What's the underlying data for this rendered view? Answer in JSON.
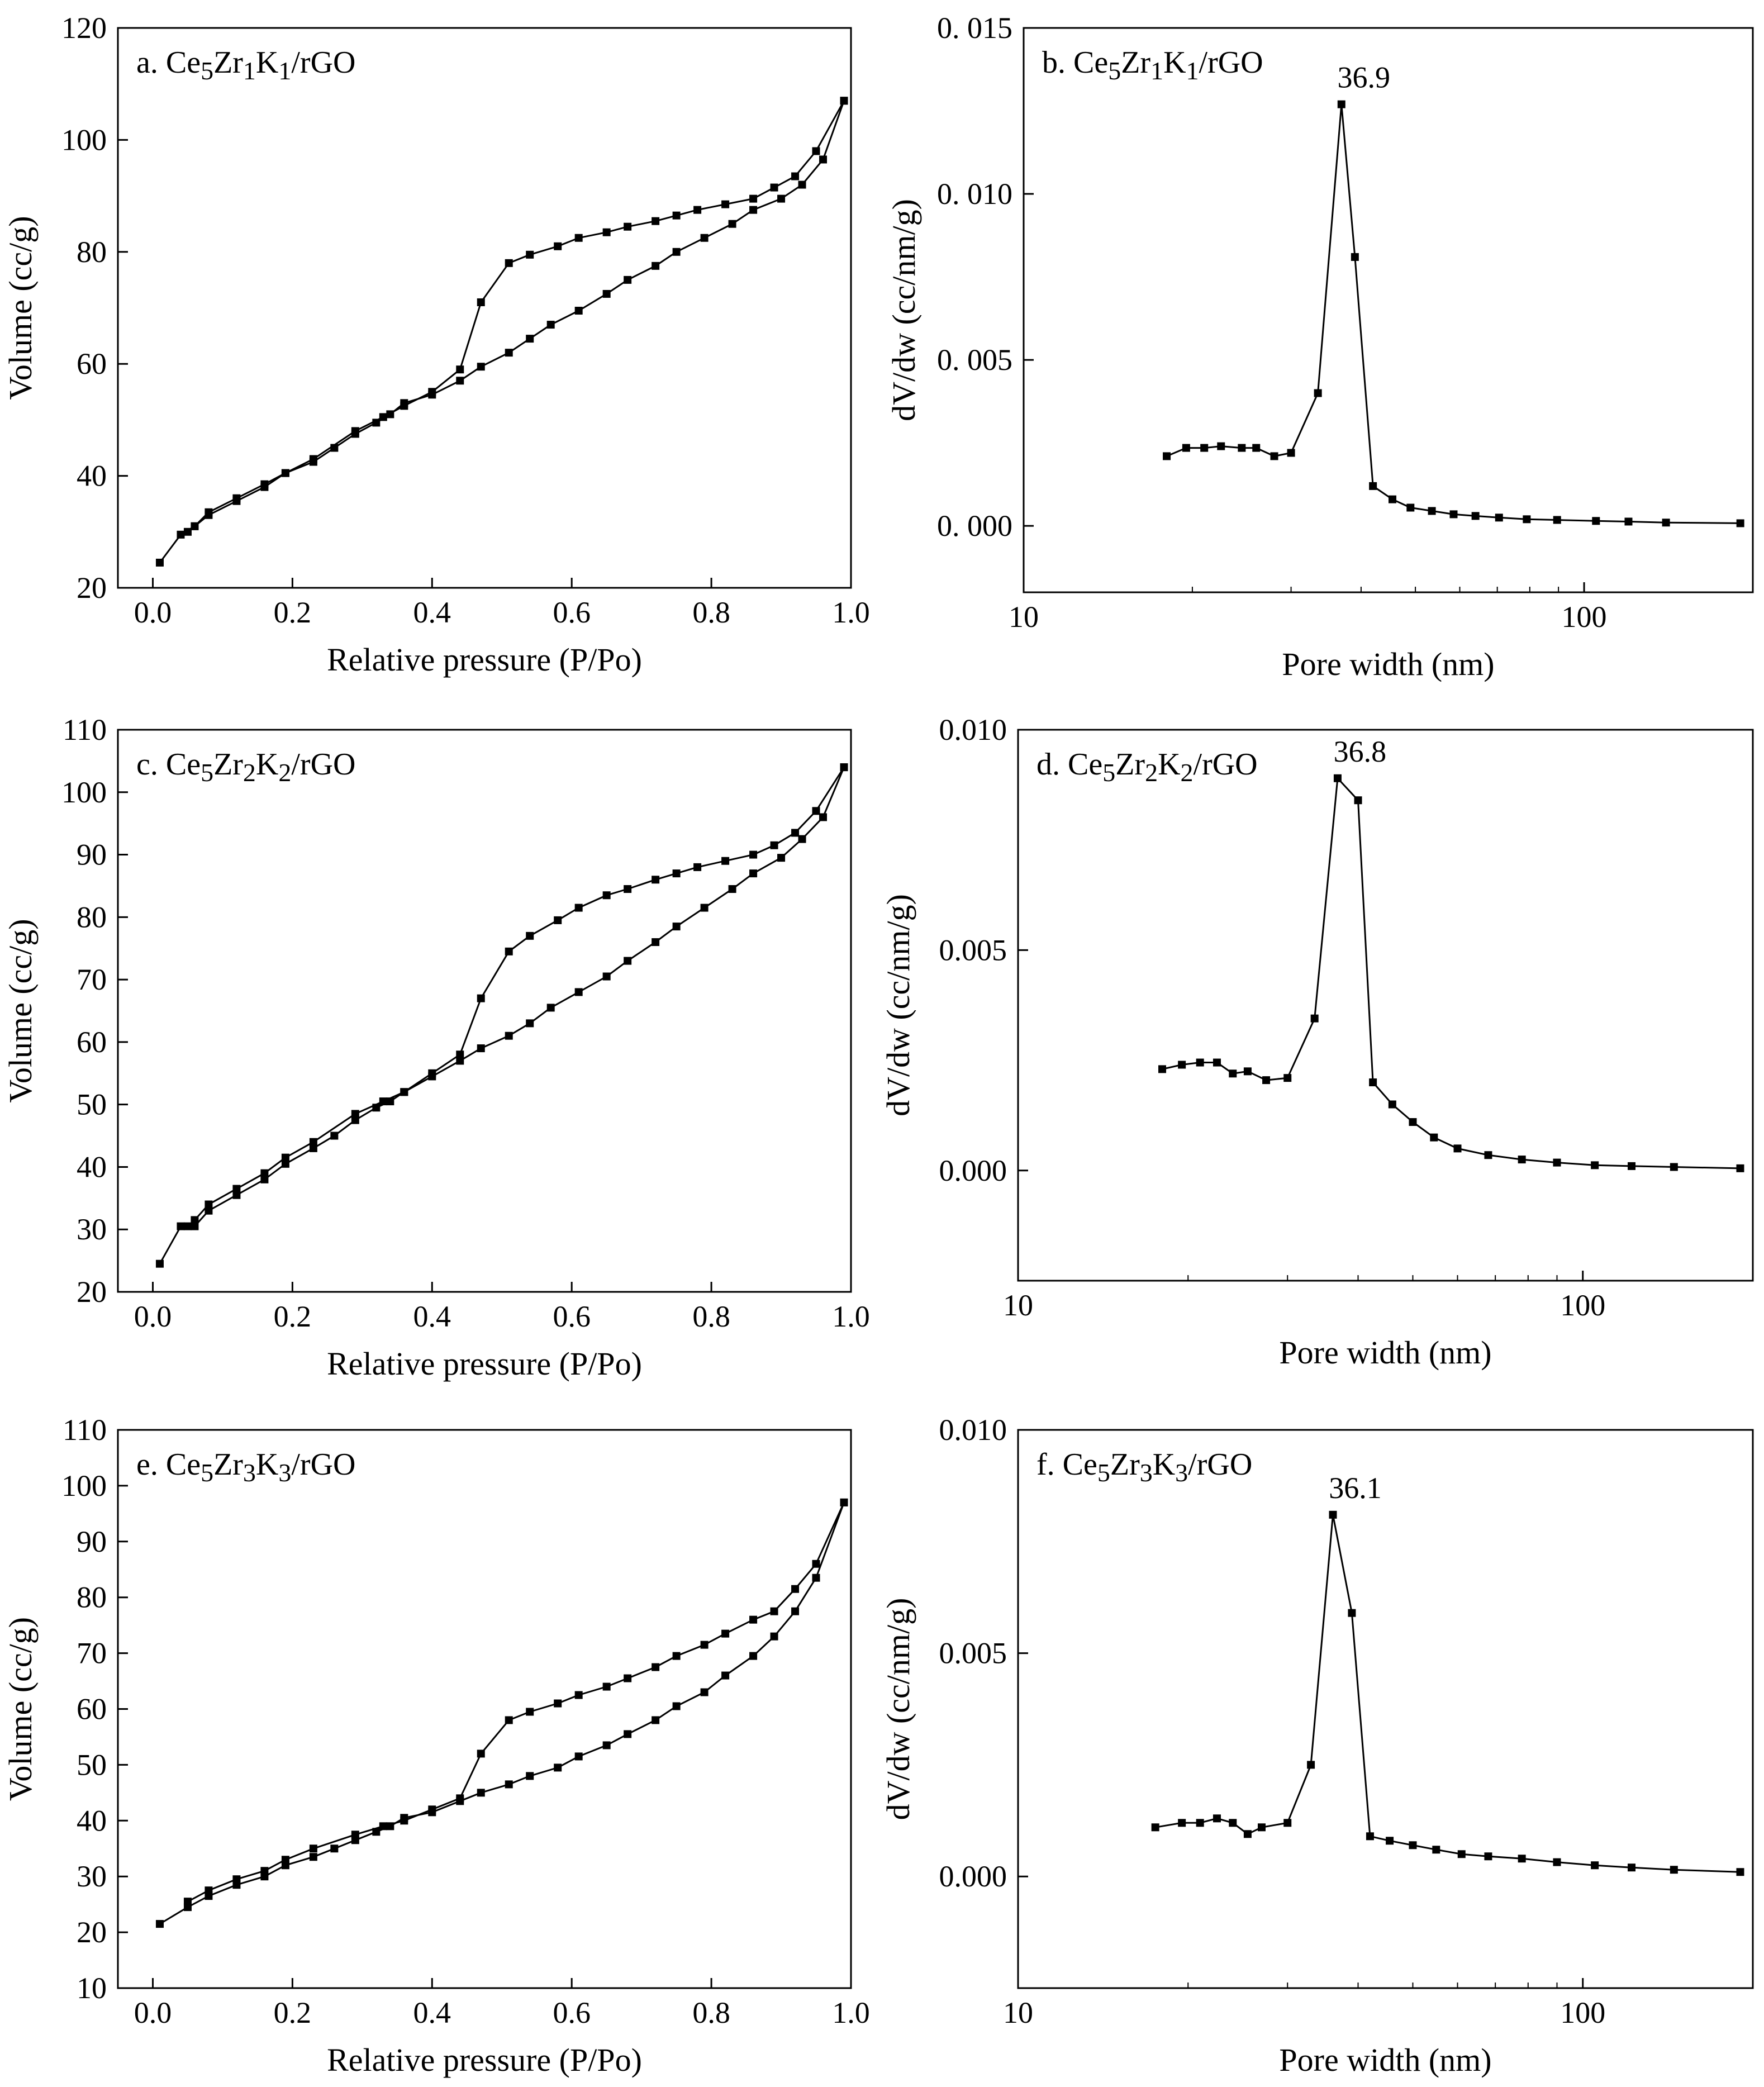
{
  "figure": {
    "panels": [
      "a",
      "b",
      "c",
      "d",
      "e",
      "f"
    ]
  },
  "chart_data": [
    {
      "id": "a",
      "type": "line",
      "panel_label": "a. Ce5Zr1K1/rGO",
      "label_parts": [
        [
          "a. Ce",
          ""
        ],
        [
          "5",
          "sub"
        ],
        [
          "Zr",
          ""
        ],
        [
          "1",
          "sub"
        ],
        [
          "K",
          ""
        ],
        [
          "1",
          "sub"
        ],
        [
          "/rGO",
          ""
        ]
      ],
      "xlabel": "Relative pressure (P/Po)",
      "ylabel": "Volume (cc/g)",
      "xscale": "linear",
      "xlim": [
        -0.05,
        1.0
      ],
      "ylim": [
        20,
        120
      ],
      "xticks": [
        0.0,
        0.2,
        0.4,
        0.6,
        0.8,
        1.0
      ],
      "xtick_labels": [
        "0.0",
        "0.2",
        "0.4",
        "0.6",
        "0.8",
        "1.0"
      ],
      "yticks": [
        20,
        40,
        60,
        80,
        100,
        120
      ],
      "ytick_labels": [
        "20",
        "40",
        "60",
        "80",
        "100",
        "120"
      ],
      "series": [
        {
          "x": [
            0.01,
            0.04,
            0.06,
            0.08,
            0.12,
            0.16,
            0.19,
            0.23,
            0.26,
            0.29,
            0.32,
            0.34,
            0.36,
            0.4,
            0.44,
            0.47,
            0.51,
            0.54,
            0.57,
            0.61,
            0.65,
            0.68,
            0.72,
            0.75,
            0.79,
            0.83,
            0.86,
            0.9,
            0.93,
            0.96,
            0.99
          ],
          "y": [
            24.5,
            29.5,
            31.0,
            33.0,
            35.5,
            38.0,
            40.5,
            42.5,
            45.0,
            47.5,
            49.5,
            51.0,
            53.0,
            54.5,
            57.0,
            59.5,
            62.0,
            64.5,
            67.0,
            69.5,
            72.5,
            75.0,
            77.5,
            80.0,
            82.5,
            85.0,
            87.5,
            89.5,
            92.0,
            96.5,
            107.0
          ]
        },
        {
          "x": [
            0.99,
            0.95,
            0.92,
            0.89,
            0.86,
            0.82,
            0.78,
            0.75,
            0.72,
            0.68,
            0.65,
            0.61,
            0.58,
            0.54,
            0.51,
            0.47,
            0.44,
            0.4,
            0.36,
            0.33,
            0.29,
            0.23,
            0.19,
            0.16,
            0.12,
            0.08,
            0.06,
            0.05
          ],
          "y": [
            107.0,
            98.0,
            93.5,
            91.5,
            89.5,
            88.5,
            87.5,
            86.5,
            85.5,
            84.5,
            83.5,
            82.5,
            81.0,
            79.5,
            78.0,
            71.0,
            59.0,
            55.0,
            52.5,
            50.5,
            48.0,
            43.0,
            40.5,
            38.5,
            36.0,
            33.5,
            31.0,
            30.0
          ]
        }
      ]
    },
    {
      "id": "b",
      "type": "line",
      "panel_label": "b. Ce5Zr1K1/rGO",
      "label_parts": [
        [
          "b. Ce",
          ""
        ],
        [
          "5",
          "sub"
        ],
        [
          "Zr",
          ""
        ],
        [
          "1",
          "sub"
        ],
        [
          "K",
          ""
        ],
        [
          "1",
          "sub"
        ],
        [
          "/rGO",
          ""
        ]
      ],
      "xlabel": "Pore width (nm)",
      "ylabel": "dV/dw (cc/nm/g)",
      "xscale": "log",
      "xlim": [
        10,
        200
      ],
      "ylim": [
        -0.002,
        0.015
      ],
      "xticks": [
        10,
        100
      ],
      "xtick_labels": [
        "10",
        "100"
      ],
      "yticks": [
        0.0,
        0.005,
        0.01,
        0.015
      ],
      "ytick_labels": [
        "0. 000",
        "0. 005",
        "0. 010",
        "0. 015"
      ],
      "peak_annotation": {
        "text": "36.9",
        "x": 36.9,
        "y": 0.0127
      },
      "series": [
        {
          "x": [
            18.0,
            19.5,
            21.0,
            22.5,
            24.5,
            26.0,
            28.0,
            30.0,
            33.5,
            36.9,
            39.0,
            42.0,
            45.5,
            49.0,
            53.5,
            58.5,
            64.0,
            70.5,
            79.0,
            89.5,
            105.0,
            120.0,
            140.0,
            190.0
          ],
          "y": [
            0.0021,
            0.00235,
            0.00235,
            0.0024,
            0.00235,
            0.00235,
            0.0021,
            0.0022,
            0.004,
            0.0127,
            0.0081,
            0.0012,
            0.0008,
            0.00055,
            0.00045,
            0.00035,
            0.0003,
            0.00025,
            0.0002,
            0.00018,
            0.00015,
            0.00013,
            0.0001,
            8e-05
          ]
        }
      ]
    },
    {
      "id": "c",
      "type": "line",
      "panel_label": "c. Ce5Zr2K2/rGO",
      "label_parts": [
        [
          "c. Ce",
          ""
        ],
        [
          "5",
          "sub"
        ],
        [
          "Zr",
          ""
        ],
        [
          "2",
          "sub"
        ],
        [
          "K",
          ""
        ],
        [
          "2",
          "sub"
        ],
        [
          "/rGO",
          ""
        ]
      ],
      "xlabel": "Relative pressure (P/Po)",
      "ylabel": "Volume (cc/g)",
      "xscale": "linear",
      "xlim": [
        -0.05,
        1.0
      ],
      "ylim": [
        20,
        110
      ],
      "xticks": [
        0.0,
        0.2,
        0.4,
        0.6,
        0.8,
        1.0
      ],
      "xtick_labels": [
        "0.0",
        "0.2",
        "0.4",
        "0.6",
        "0.8",
        "1.0"
      ],
      "yticks": [
        20,
        30,
        40,
        50,
        60,
        70,
        80,
        90,
        100,
        110
      ],
      "ytick_labels": [
        "20",
        "30",
        "40",
        "50",
        "60",
        "70",
        "80",
        "90",
        "100",
        "110"
      ],
      "series": [
        {
          "x": [
            0.01,
            0.04,
            0.06,
            0.08,
            0.12,
            0.16,
            0.19,
            0.23,
            0.26,
            0.29,
            0.32,
            0.34,
            0.36,
            0.4,
            0.44,
            0.47,
            0.51,
            0.54,
            0.57,
            0.61,
            0.65,
            0.68,
            0.72,
            0.75,
            0.79,
            0.83,
            0.86,
            0.9,
            0.93,
            0.96,
            0.99
          ],
          "y": [
            24.5,
            30.5,
            30.5,
            33.0,
            35.5,
            38.0,
            40.5,
            43.0,
            45.0,
            47.5,
            49.5,
            50.5,
            52.0,
            54.5,
            57.0,
            59.0,
            61.0,
            63.0,
            65.5,
            68.0,
            70.5,
            73.0,
            76.0,
            78.5,
            81.5,
            84.5,
            87.0,
            89.5,
            92.5,
            96.0,
            104.0
          ]
        },
        {
          "x": [
            0.99,
            0.95,
            0.92,
            0.89,
            0.86,
            0.82,
            0.78,
            0.75,
            0.72,
            0.68,
            0.65,
            0.61,
            0.58,
            0.54,
            0.51,
            0.47,
            0.44,
            0.4,
            0.36,
            0.33,
            0.29,
            0.23,
            0.19,
            0.16,
            0.12,
            0.08,
            0.06,
            0.05
          ],
          "y": [
            104.0,
            97.0,
            93.5,
            91.5,
            90.0,
            89.0,
            88.0,
            87.0,
            86.0,
            84.5,
            83.5,
            81.5,
            79.5,
            77.0,
            74.5,
            67.0,
            58.0,
            55.0,
            52.0,
            50.5,
            48.5,
            44.0,
            41.5,
            39.0,
            36.5,
            34.0,
            31.5,
            30.5
          ]
        }
      ]
    },
    {
      "id": "d",
      "type": "line",
      "panel_label": "d. Ce5Zr2K2/rGO",
      "label_parts": [
        [
          "d. Ce",
          ""
        ],
        [
          "5",
          "sub"
        ],
        [
          "Zr",
          ""
        ],
        [
          "2",
          "sub"
        ],
        [
          "K",
          ""
        ],
        [
          "2",
          "sub"
        ],
        [
          "/rGO",
          ""
        ]
      ],
      "xlabel": "Pore width (nm)",
      "ylabel": "dV/dw (cc/nm/g)",
      "xscale": "log",
      "xlim": [
        10,
        200
      ],
      "ylim": [
        -0.0025,
        0.01
      ],
      "xticks": [
        10,
        100
      ],
      "xtick_labels": [
        "10",
        "100"
      ],
      "yticks": [
        0.0,
        0.005,
        0.01
      ],
      "ytick_labels": [
        "0.000",
        "0.005",
        "0.010"
      ],
      "peak_annotation": {
        "text": "36.8",
        "x": 36.8,
        "y": 0.0089
      },
      "series": [
        {
          "x": [
            18.0,
            19.5,
            21.0,
            22.5,
            24.0,
            25.5,
            27.5,
            30.0,
            33.5,
            36.8,
            40.0,
            42.5,
            46.0,
            50.0,
            54.5,
            60.0,
            68.0,
            78.0,
            90.0,
            105.0,
            122.0,
            145.0,
            190.0
          ],
          "y": [
            0.0023,
            0.0024,
            0.00245,
            0.00245,
            0.0022,
            0.00225,
            0.00205,
            0.0021,
            0.00345,
            0.0089,
            0.0084,
            0.002,
            0.0015,
            0.0011,
            0.00075,
            0.0005,
            0.00035,
            0.00025,
            0.00018,
            0.00012,
            0.0001,
            8e-05,
            5e-05
          ]
        }
      ]
    },
    {
      "id": "e",
      "type": "line",
      "panel_label": "e. Ce5Zr3K3/rGO",
      "label_parts": [
        [
          "e. Ce",
          ""
        ],
        [
          "5",
          "sub"
        ],
        [
          "Zr",
          ""
        ],
        [
          "3",
          "sub"
        ],
        [
          "K",
          ""
        ],
        [
          "3",
          "sub"
        ],
        [
          "/rGO",
          ""
        ]
      ],
      "xlabel": "Relative pressure (P/Po)",
      "ylabel": "Volume (cc/g)",
      "xscale": "linear",
      "xlim": [
        -0.05,
        1.0
      ],
      "ylim": [
        10,
        110
      ],
      "xticks": [
        0.0,
        0.2,
        0.4,
        0.6,
        0.8,
        1.0
      ],
      "xtick_labels": [
        "0.0",
        "0.2",
        "0.4",
        "0.6",
        "0.8",
        "1.0"
      ],
      "yticks": [
        10,
        20,
        30,
        40,
        50,
        60,
        70,
        80,
        90,
        100,
        110
      ],
      "ytick_labels": [
        "10",
        "20",
        "30",
        "40",
        "50",
        "60",
        "70",
        "80",
        "90",
        "100",
        "110"
      ],
      "series": [
        {
          "x": [
            0.01,
            0.05,
            0.08,
            0.12,
            0.16,
            0.19,
            0.23,
            0.26,
            0.29,
            0.32,
            0.34,
            0.36,
            0.4,
            0.44,
            0.47,
            0.51,
            0.54,
            0.58,
            0.61,
            0.65,
            0.68,
            0.72,
            0.75,
            0.79,
            0.82,
            0.86,
            0.89,
            0.92,
            0.95,
            0.99
          ],
          "y": [
            21.5,
            24.5,
            26.5,
            28.5,
            30.0,
            32.0,
            33.5,
            35.0,
            36.5,
            38.0,
            39.0,
            40.5,
            41.5,
            43.5,
            45.0,
            46.5,
            48.0,
            49.5,
            51.5,
            53.5,
            55.5,
            58.0,
            60.5,
            63.0,
            66.0,
            69.5,
            73.0,
            77.5,
            83.5,
            97.0
          ]
        },
        {
          "x": [
            0.99,
            0.95,
            0.92,
            0.89,
            0.86,
            0.82,
            0.79,
            0.75,
            0.72,
            0.68,
            0.65,
            0.61,
            0.58,
            0.54,
            0.51,
            0.47,
            0.44,
            0.4,
            0.36,
            0.33,
            0.29,
            0.23,
            0.19,
            0.16,
            0.12,
            0.08,
            0.05
          ],
          "y": [
            97.0,
            86.0,
            81.5,
            77.5,
            76.0,
            73.5,
            71.5,
            69.5,
            67.5,
            65.5,
            64.0,
            62.5,
            61.0,
            59.5,
            58.0,
            52.0,
            44.0,
            42.0,
            40.0,
            39.0,
            37.5,
            35.0,
            33.0,
            31.0,
            29.5,
            27.5,
            25.5
          ]
        }
      ]
    },
    {
      "id": "f",
      "type": "line",
      "panel_label": "f. Ce5Zr3K3/rGO",
      "label_parts": [
        [
          "f. Ce",
          ""
        ],
        [
          "5",
          "sub"
        ],
        [
          "Zr",
          ""
        ],
        [
          "3",
          "sub"
        ],
        [
          "K",
          ""
        ],
        [
          "3",
          "sub"
        ],
        [
          "/rGO",
          ""
        ]
      ],
      "xlabel": "Pore width (nm)",
      "ylabel": "dV/dw (cc/nm/g)",
      "xscale": "log",
      "xlim": [
        10,
        200
      ],
      "ylim": [
        -0.0025,
        0.01
      ],
      "xticks": [
        10,
        100
      ],
      "xtick_labels": [
        "10",
        "100"
      ],
      "yticks": [
        0.0,
        0.005,
        0.01
      ],
      "ytick_labels": [
        "0.000",
        "0.005",
        "0.010"
      ],
      "peak_annotation": {
        "text": "36.1",
        "x": 36.1,
        "y": 0.0081
      },
      "series": [
        {
          "x": [
            17.5,
            19.5,
            21.0,
            22.5,
            24.0,
            25.5,
            27.0,
            30.0,
            33.0,
            36.1,
            39.0,
            42.0,
            45.5,
            50.0,
            55.0,
            61.0,
            68.0,
            78.0,
            90.0,
            105.0,
            122.0,
            145.0,
            190.0
          ],
          "y": [
            0.0011,
            0.0012,
            0.0012,
            0.0013,
            0.0012,
            0.00095,
            0.0011,
            0.0012,
            0.0025,
            0.0081,
            0.0059,
            0.0009,
            0.0008,
            0.0007,
            0.0006,
            0.0005,
            0.00045,
            0.0004,
            0.00032,
            0.00025,
            0.0002,
            0.00015,
            0.0001
          ]
        }
      ]
    }
  ]
}
